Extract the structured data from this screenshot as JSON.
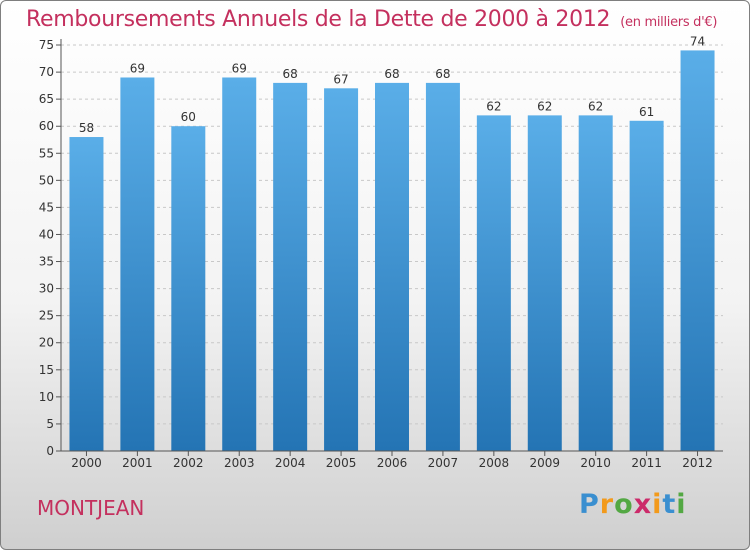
{
  "header": {
    "title": "Remboursements Annuels de la Dette de 2000 à 2012",
    "subtitle": "(en milliers d'€)"
  },
  "footer": {
    "commune": "MONTJEAN",
    "logo": [
      "P",
      "r",
      "o",
      "x",
      "i",
      "t",
      "i"
    ],
    "logo_colors": [
      "#3a8fd0",
      "#f29a1b",
      "#53a843",
      "#cc2a6a",
      "#f29a1b",
      "#3a8fd0",
      "#53a843"
    ]
  },
  "colors": {
    "bar": "#2f86c6",
    "title": "#c4305e"
  },
  "chart_data": {
    "type": "bar",
    "title": "Remboursements Annuels de la Dette de 2000 à 2012",
    "subtitle": "(en milliers d'€)",
    "xlabel": "",
    "ylabel": "",
    "categories": [
      "2000",
      "2001",
      "2002",
      "2003",
      "2004",
      "2005",
      "2006",
      "2007",
      "2008",
      "2009",
      "2010",
      "2011",
      "2012"
    ],
    "values": [
      58,
      69,
      60,
      69,
      68,
      67,
      68,
      68,
      62,
      62,
      62,
      61,
      74
    ],
    "ylim": [
      0,
      75
    ],
    "yticks": [
      0,
      5,
      10,
      15,
      20,
      25,
      30,
      35,
      40,
      45,
      50,
      55,
      60,
      65,
      70,
      75
    ],
    "grid": true
  }
}
